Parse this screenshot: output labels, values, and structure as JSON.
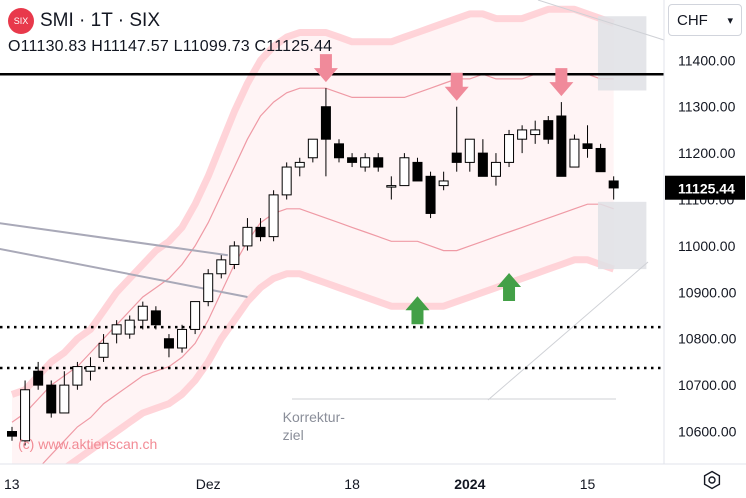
{
  "header": {
    "symbol": "SMI · 1T · SIX",
    "logo_text": "SIX",
    "open": "O11130.83",
    "high": "H11147.57",
    "low": "L11099.73",
    "close": "C11125.44"
  },
  "currency_selector": {
    "label": "CHF",
    "icon": "chevron-down-icon"
  },
  "settings": {
    "icon": "gear-icon"
  },
  "watermark": "(c) www.aktienscan.ch",
  "annotation": {
    "line1": "Korrektur-",
    "line2": "ziel"
  },
  "colors": {
    "up_fill": "#ffffff",
    "down_fill": "#000000",
    "band": "#ffcdd2",
    "arrow_down": "#f08a9a",
    "arrow_up": "#43a047"
  },
  "chart_data": {
    "type": "candlestick",
    "title": "SMI · 1T · SIX",
    "price_label": "11125.44",
    "ylim": [
      10530,
      11530
    ],
    "y_ticks": [
      "10600.00",
      "10700.00",
      "10800.00",
      "10900.00",
      "11000.00",
      "11100.00",
      "11200.00",
      "11300.00",
      "11400.00"
    ],
    "y_tick_values": [
      10600,
      10700,
      10800,
      10900,
      11000,
      11100,
      11200,
      11300,
      11400
    ],
    "x_ticks": [
      "13",
      "Dez",
      "18",
      "2024",
      "15"
    ],
    "x_tick_index": [
      0,
      15,
      26,
      35,
      44
    ],
    "candles": [
      [
        10600,
        10610,
        10580,
        10590
      ],
      [
        10580,
        10710,
        10570,
        10690
      ],
      [
        10730,
        10750,
        10690,
        10700
      ],
      [
        10700,
        10710,
        10630,
        10640
      ],
      [
        10640,
        10730,
        10640,
        10700
      ],
      [
        10700,
        10750,
        10690,
        10740
      ],
      [
        10730,
        10760,
        10710,
        10740
      ],
      [
        10760,
        10810,
        10750,
        10790
      ],
      [
        10810,
        10840,
        10790,
        10830
      ],
      [
        10810,
        10850,
        10800,
        10840
      ],
      [
        10840,
        10880,
        10820,
        10870
      ],
      [
        10860,
        10870,
        10820,
        10830
      ],
      [
        10800,
        10810,
        10760,
        10780
      ],
      [
        10780,
        10830,
        10770,
        10820
      ],
      [
        10820,
        10880,
        10810,
        10880
      ],
      [
        10880,
        10950,
        10870,
        10940
      ],
      [
        10940,
        10980,
        10930,
        10970
      ],
      [
        10960,
        11010,
        10950,
        11000
      ],
      [
        11000,
        11060,
        10990,
        11040
      ],
      [
        11040,
        11060,
        11010,
        11020
      ],
      [
        11020,
        11120,
        11010,
        11110
      ],
      [
        11110,
        11180,
        11100,
        11170
      ],
      [
        11170,
        11190,
        11150,
        11180
      ],
      [
        11190,
        11230,
        11180,
        11230
      ],
      [
        11300,
        11340,
        11150,
        11230
      ],
      [
        11220,
        11230,
        11180,
        11190
      ],
      [
        11190,
        11200,
        11170,
        11180
      ],
      [
        11170,
        11200,
        11160,
        11190
      ],
      [
        11190,
        11200,
        11160,
        11170
      ],
      [
        11130,
        11150,
        11100,
        11130
      ],
      [
        11130,
        11200,
        11130,
        11190
      ],
      [
        11180,
        11190,
        11140,
        11140
      ],
      [
        11150,
        11160,
        11060,
        11070
      ],
      [
        11130,
        11160,
        11120,
        11140
      ],
      [
        11200,
        11300,
        11160,
        11180
      ],
      [
        11180,
        11230,
        11160,
        11230
      ],
      [
        11200,
        11230,
        11150,
        11150
      ],
      [
        11150,
        11200,
        11130,
        11180
      ],
      [
        11180,
        11250,
        11170,
        11240
      ],
      [
        11230,
        11260,
        11200,
        11250
      ],
      [
        11240,
        11270,
        11220,
        11250
      ],
      [
        11270,
        11280,
        11220,
        11230
      ],
      [
        11280,
        11310,
        11150,
        11150
      ],
      [
        11170,
        11240,
        11170,
        11230
      ],
      [
        11220,
        11260,
        11190,
        11210
      ],
      [
        11210,
        11220,
        11160,
        11160
      ],
      [
        11140,
        11150,
        11100,
        11125
      ]
    ],
    "band": {
      "outer_upper": [
        10680,
        10690,
        10720,
        10750,
        10770,
        10800,
        10820,
        10860,
        10900,
        10930,
        10960,
        10990,
        11010,
        11040,
        11090,
        11150,
        11220,
        11290,
        11350,
        11400,
        11430,
        11450,
        11460,
        11460,
        11460,
        11450,
        11440,
        11440,
        11440,
        11440,
        11450,
        11460,
        11470,
        11480,
        11490,
        11500,
        11500,
        11490,
        11490,
        11490,
        11500,
        11510,
        11510,
        11510,
        11500,
        11490,
        11480
      ],
      "inner_upper": [
        10620,
        10640,
        10670,
        10700,
        10720,
        10740,
        10770,
        10800,
        10830,
        10860,
        10890,
        10910,
        10930,
        10960,
        11000,
        11050,
        11110,
        11170,
        11230,
        11280,
        11310,
        11330,
        11340,
        11340,
        11340,
        11330,
        11320,
        11320,
        11320,
        11320,
        11320,
        11330,
        11340,
        11350,
        11360,
        11360,
        11370,
        11360,
        11360,
        11360,
        11370,
        11370,
        11370,
        11370,
        11370,
        11360,
        11360
      ],
      "inner_lower": [
        10490,
        10500,
        10520,
        10550,
        10580,
        10610,
        10630,
        10660,
        10680,
        10700,
        10720,
        10730,
        10740,
        10760,
        10790,
        10840,
        10900,
        10960,
        11010,
        11050,
        11070,
        11080,
        11080,
        11070,
        11060,
        11050,
        11040,
        11030,
        11020,
        11010,
        11010,
        11010,
        11000,
        10990,
        10990,
        11000,
        11010,
        11020,
        11030,
        11040,
        11050,
        11060,
        11070,
        11080,
        11090,
        11090,
        11080
      ],
      "outer_lower": [
        10440,
        10450,
        10470,
        10500,
        10520,
        10540,
        10560,
        10580,
        10600,
        10620,
        10640,
        10650,
        10660,
        10680,
        10710,
        10750,
        10800,
        10840,
        10880,
        10910,
        10930,
        10940,
        10940,
        10930,
        10920,
        10910,
        10900,
        10890,
        10880,
        10870,
        10870,
        10870,
        10870,
        10870,
        10880,
        10890,
        10900,
        10910,
        10920,
        10930,
        10940,
        10950,
        10960,
        10970,
        10970,
        10960,
        10950
      ]
    },
    "horizontal_lines": [
      {
        "value": 11370,
        "style": "solid"
      },
      {
        "value": 10825,
        "style": "dotted"
      },
      {
        "value": 10737,
        "style": "dotted"
      }
    ],
    "trend_lines": [
      {
        "x1": -1.2,
        "y1": 11050,
        "x2": 16.5,
        "y2": 10980
      },
      {
        "x1": -1.2,
        "y1": 10995,
        "x2": 18.0,
        "y2": 10890
      }
    ],
    "zones": [
      {
        "x1": 44.8,
        "x2": 48.5,
        "y1": 11335,
        "y2": 11495
      },
      {
        "x1": 44.8,
        "x2": 48.5,
        "y1": 10950,
        "y2": 11095
      }
    ],
    "down_arrows_index": [
      24,
      34,
      42
    ],
    "up_arrows_index": [
      31,
      38
    ],
    "annotation_index": 21
  }
}
